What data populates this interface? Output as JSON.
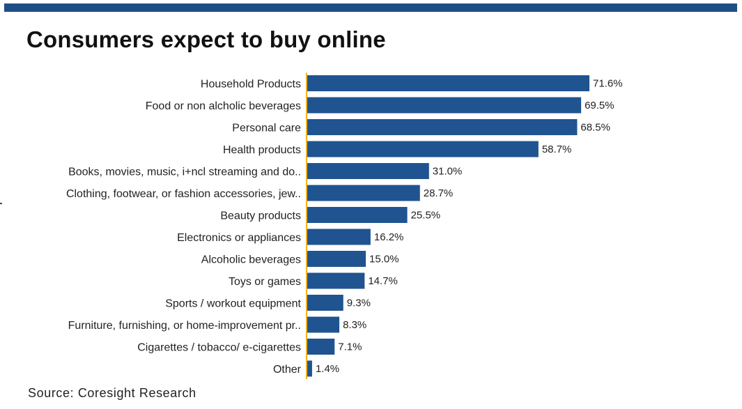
{
  "colors": {
    "band": "#1f4e87",
    "bar": "#1f5491",
    "axis": "#f0b323"
  },
  "chart_data": {
    "type": "bar",
    "orientation": "horizontal",
    "title": "Consumers expect to buy online",
    "xlabel": "",
    "ylabel": "",
    "xlim": [
      0,
      80
    ],
    "grid": false,
    "value_suffix": "%",
    "categories": [
      "Household Products",
      "Food or non alcholic beverages",
      "Personal care",
      "Health products",
      "Books, movies, music, i+ncl streaming and do..",
      "Clothing, footwear, or fashion accessories, jew..",
      "Beauty products",
      "Electronics or appliances",
      "Alcoholic beverages",
      "Toys or games",
      "Sports / workout equipment",
      "Furniture, furnishing, or home-improvement pr..",
      "Cigarettes / tobacco/ e-cigarettes",
      "Other"
    ],
    "values": [
      71.6,
      69.5,
      68.5,
      58.7,
      31.0,
      28.7,
      25.5,
      16.2,
      15.0,
      14.7,
      9.3,
      8.3,
      7.1,
      1.4
    ],
    "source": "Source: Coresight Research"
  }
}
